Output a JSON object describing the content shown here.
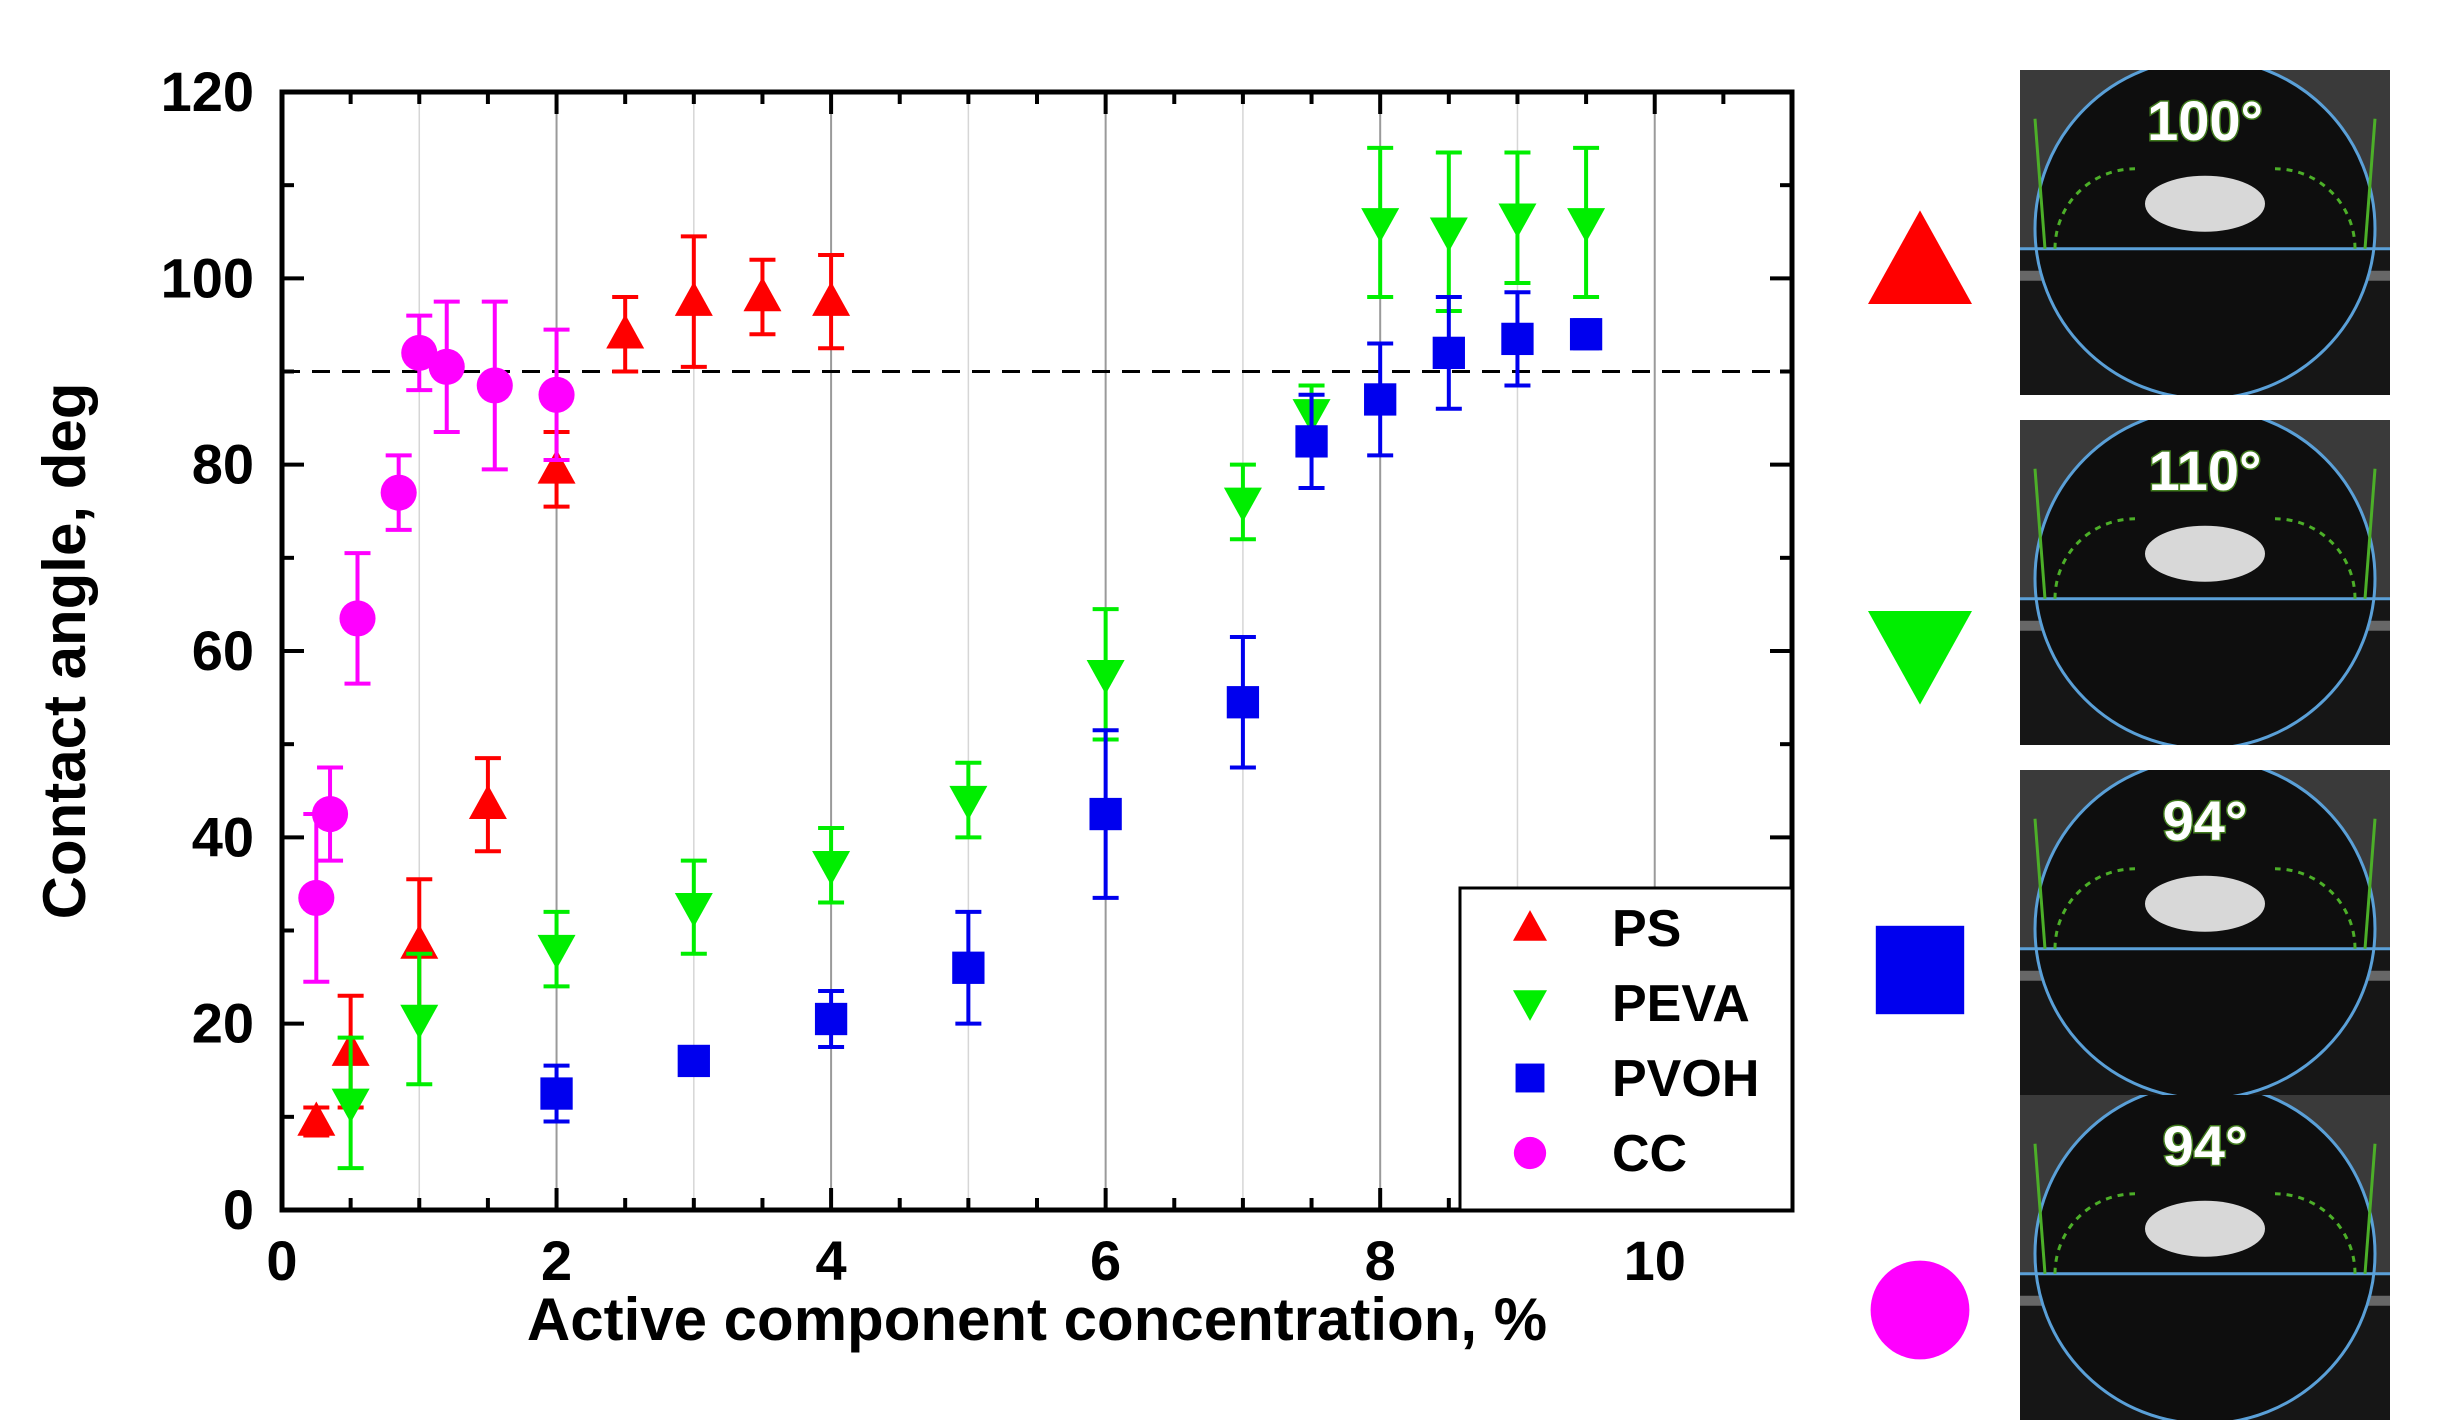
{
  "chart_data": {
    "type": "scatter",
    "xlabel": "Active component concentration, %",
    "ylabel": "Contact angle, deg",
    "xlim": [
      0,
      11
    ],
    "ylim": [
      0,
      120
    ],
    "xticks": [
      "0",
      "2",
      "4",
      "6",
      "8",
      "10"
    ],
    "yticks": [
      "0",
      "20",
      "40",
      "60",
      "80",
      "100",
      "120"
    ],
    "grid": "vertical",
    "reference_line": {
      "y": 90,
      "style": "dashed"
    },
    "legend": {
      "placement": "bottom-right"
    },
    "series": [
      {
        "name": "PS",
        "marker": "triangle-up",
        "color": "#ff0000",
        "points": [
          {
            "x": 0.25,
            "y": 9.5,
            "err": 1.5
          },
          {
            "x": 0.5,
            "y": 17,
            "err": 6
          },
          {
            "x": 1.0,
            "y": 28.5,
            "err": 7
          },
          {
            "x": 1.5,
            "y": 43.5,
            "err": 5
          },
          {
            "x": 2.0,
            "y": 79.5,
            "err": 4
          },
          {
            "x": 2.5,
            "y": 94,
            "err": 4
          },
          {
            "x": 3.0,
            "y": 97.5,
            "err": 7
          },
          {
            "x": 3.5,
            "y": 98,
            "err": 4
          },
          {
            "x": 4.0,
            "y": 97.5,
            "err": 5
          }
        ]
      },
      {
        "name": "PEVA",
        "marker": "triangle-down",
        "color": "#00ee00",
        "points": [
          {
            "x": 0.5,
            "y": 11.5,
            "err": 7
          },
          {
            "x": 1.0,
            "y": 20.5,
            "err": 7
          },
          {
            "x": 2.0,
            "y": 28,
            "err": 4
          },
          {
            "x": 3.0,
            "y": 32.5,
            "err": 5
          },
          {
            "x": 4.0,
            "y": 37,
            "err": 4
          },
          {
            "x": 5.0,
            "y": 44,
            "err": 4
          },
          {
            "x": 6.0,
            "y": 57.5,
            "err": 7
          },
          {
            "x": 7.0,
            "y": 76,
            "err": 4
          },
          {
            "x": 7.5,
            "y": 85.5,
            "err": 3
          },
          {
            "x": 8.0,
            "y": 106,
            "err": 8
          },
          {
            "x": 8.5,
            "y": 105,
            "err": 8.5
          },
          {
            "x": 9.0,
            "y": 106.5,
            "err": 7
          },
          {
            "x": 9.5,
            "y": 106,
            "err": 8
          }
        ]
      },
      {
        "name": "PVOH",
        "marker": "square",
        "color": "#0000ee",
        "points": [
          {
            "x": 2.0,
            "y": 12.5,
            "err": 3
          },
          {
            "x": 3.0,
            "y": 16,
            "err": 1.5
          },
          {
            "x": 4.0,
            "y": 20.5,
            "err": 3
          },
          {
            "x": 5.0,
            "y": 26,
            "err": 6
          },
          {
            "x": 6.0,
            "y": 42.5,
            "err": 9
          },
          {
            "x": 7.0,
            "y": 54.5,
            "err": 7
          },
          {
            "x": 7.5,
            "y": 82.5,
            "err": 5
          },
          {
            "x": 8.0,
            "y": 87,
            "err": 6
          },
          {
            "x": 8.5,
            "y": 92,
            "err": 6
          },
          {
            "x": 9.0,
            "y": 93.5,
            "err": 5
          },
          {
            "x": 9.5,
            "y": 94,
            "err": 1.5
          }
        ]
      },
      {
        "name": "CC",
        "marker": "circle",
        "color": "#ff00ff",
        "points": [
          {
            "x": 0.25,
            "y": 33.5,
            "err": 9
          },
          {
            "x": 0.35,
            "y": 42.5,
            "err": 5
          },
          {
            "x": 0.55,
            "y": 63.5,
            "err": 7
          },
          {
            "x": 0.85,
            "y": 77,
            "err": 4
          },
          {
            "x": 1.0,
            "y": 92,
            "err": 4
          },
          {
            "x": 1.2,
            "y": 90.5,
            "err": 7
          },
          {
            "x": 1.55,
            "y": 88.5,
            "err": 9
          },
          {
            "x": 2.0,
            "y": 87.5,
            "err": 7
          }
        ]
      }
    ]
  },
  "insets": [
    {
      "series": "PS",
      "angle_label": "100°"
    },
    {
      "series": "PEVA",
      "angle_label": "110°"
    },
    {
      "series": "PVOH",
      "angle_label": "94°"
    },
    {
      "series": "CC",
      "angle_label": "94°"
    }
  ]
}
